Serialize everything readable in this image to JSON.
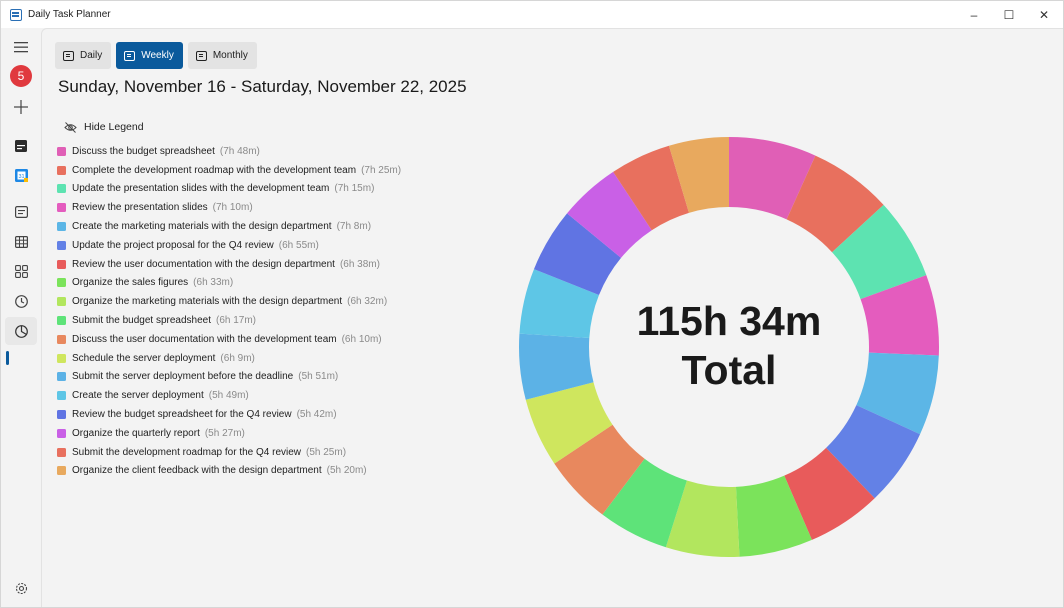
{
  "window": {
    "title": "Daily Task Planner",
    "controls": {
      "minimize": "–",
      "maximize": "☐",
      "close": "✕"
    }
  },
  "sidebar": {
    "badge_count": "5",
    "items": [
      {
        "name": "menu",
        "icon": "hamburger-icon"
      },
      {
        "name": "notifications",
        "icon": "badge"
      },
      {
        "name": "add",
        "icon": "plus-icon"
      },
      {
        "name": "calendar-dark",
        "icon": "calendar-icon"
      },
      {
        "name": "google-calendar",
        "icon": "google-calendar-icon"
      },
      {
        "name": "agenda",
        "icon": "agenda-icon"
      },
      {
        "name": "grid",
        "icon": "grid-icon"
      },
      {
        "name": "widgets",
        "icon": "apps-icon"
      },
      {
        "name": "clock",
        "icon": "clock-icon"
      },
      {
        "name": "chart",
        "icon": "pie-chart-icon",
        "active": true
      },
      {
        "name": "settings",
        "icon": "gear-icon"
      }
    ]
  },
  "tabs": [
    {
      "label": "Daily",
      "active": false
    },
    {
      "label": "Weekly",
      "active": true
    },
    {
      "label": "Monthly",
      "active": false
    }
  ],
  "date_range": "Sunday, November 16 - Saturday, November 22, 2025",
  "legend_toggle_label": "Hide Legend",
  "accent_color": "#0a5a9c",
  "chart_data": {
    "type": "pie",
    "style": "donut",
    "center_text": [
      "115h 34m",
      "Total"
    ],
    "legend_placement": "left",
    "series": [
      {
        "name": "Discuss the budget spreadsheet",
        "duration": "(7h 48m)",
        "minutes": 468,
        "color": "#e05fb6"
      },
      {
        "name": "Complete the development roadmap with the development team",
        "duration": "(7h 25m)",
        "minutes": 445,
        "color": "#e8705e"
      },
      {
        "name": "Update the presentation slides with the development team",
        "duration": "(7h 15m)",
        "minutes": 435,
        "color": "#5de3b1"
      },
      {
        "name": "Review the presentation slides",
        "duration": "(7h 10m)",
        "minutes": 430,
        "color": "#e45cbe"
      },
      {
        "name": "Create the marketing materials with the design department",
        "duration": "(7h 8m)",
        "minutes": 428,
        "color": "#5cb6e6"
      },
      {
        "name": "Update the project proposal for the Q4 review",
        "duration": "(6h 55m)",
        "minutes": 415,
        "color": "#6381e6"
      },
      {
        "name": "Review the user documentation with the design department",
        "duration": "(6h 38m)",
        "minutes": 398,
        "color": "#e85b5b"
      },
      {
        "name": "Organize the sales figures",
        "duration": "(6h 33m)",
        "minutes": 393,
        "color": "#7be35b"
      },
      {
        "name": "Organize the marketing materials with the design department",
        "duration": "(6h 32m)",
        "minutes": 392,
        "color": "#b2e65e"
      },
      {
        "name": "Submit the budget spreadsheet",
        "duration": "(6h 17m)",
        "minutes": 377,
        "color": "#5ee379"
      },
      {
        "name": "Discuss the user documentation with the development team",
        "duration": "(6h 10m)",
        "minutes": 370,
        "color": "#e8885e"
      },
      {
        "name": "Schedule the server deployment",
        "duration": "(6h 9m)",
        "minutes": 369,
        "color": "#cfe65e"
      },
      {
        "name": "Submit the server deployment before the deadline",
        "duration": "(5h 51m)",
        "minutes": 351,
        "color": "#5cb2e6"
      },
      {
        "name": "Create the server deployment",
        "duration": "(5h 49m)",
        "minutes": 349,
        "color": "#5ec6e6"
      },
      {
        "name": "Review the budget spreadsheet for the Q4 review",
        "duration": "(5h 42m)",
        "minutes": 342,
        "color": "#6074e3"
      },
      {
        "name": "Organize the quarterly report",
        "duration": "(5h 27m)",
        "minutes": 327,
        "color": "#c960e6"
      },
      {
        "name": "Submit the development roadmap for the Q4 review",
        "duration": "(5h 25m)",
        "minutes": 325,
        "color": "#e8705e"
      },
      {
        "name": "Organize the client feedback with the design department",
        "duration": "(5h 20m)",
        "minutes": 320,
        "color": "#e8a95e"
      }
    ]
  }
}
